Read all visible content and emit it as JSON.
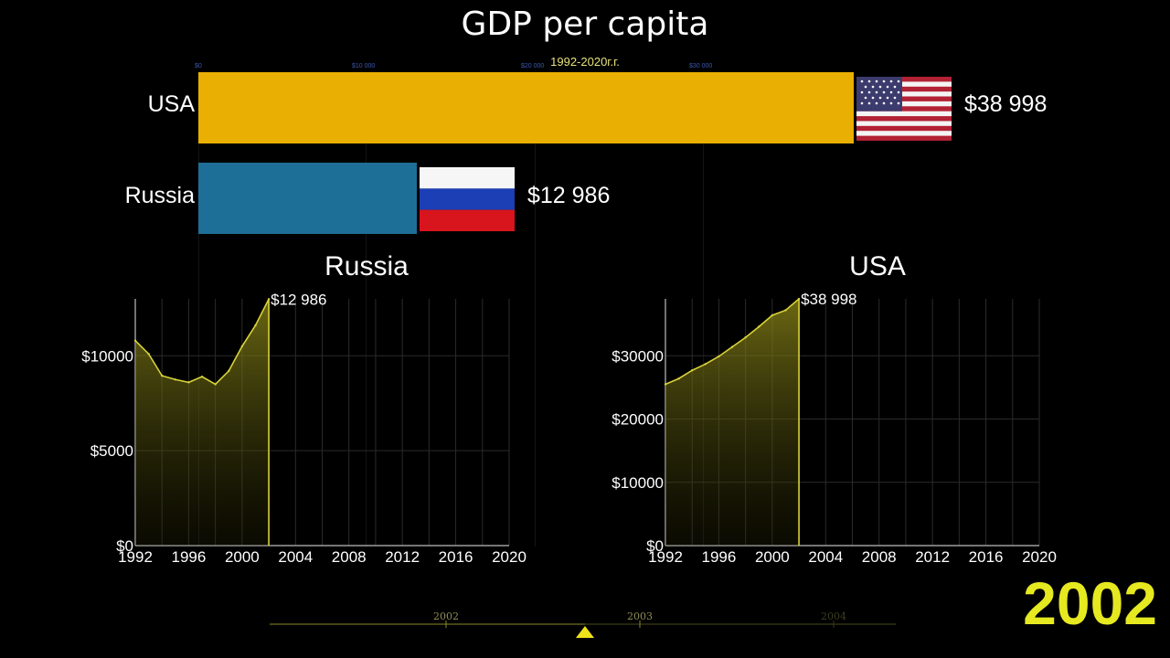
{
  "title": "GDP per capita",
  "subtitle": "1992-2020г.г.",
  "current_year": "2002",
  "bar_axis_ticks": [
    "$0",
    "$10 000",
    "$20 000",
    "$30 000"
  ],
  "bars": [
    {
      "country": "USA",
      "value_label": "$38 998",
      "color": "#e9af03"
    },
    {
      "country": "Russia",
      "value_label": "$12 986",
      "color": "#1e6f97"
    }
  ],
  "timeline": {
    "years": [
      "2002",
      "2003",
      "2004"
    ],
    "marker_color": "#f0e21a"
  },
  "chart_data": [
    {
      "type": "bar",
      "title": "GDP per capita",
      "subtitle": "1992-2020г.г.",
      "categories": [
        "USA",
        "Russia"
      ],
      "values": [
        38998,
        12986
      ],
      "value_labels": [
        "$38 998",
        "$12 986"
      ],
      "xlim": [
        0,
        38998
      ],
      "axis_ticks": [
        "$0",
        "$10 000",
        "$20 000",
        "$30 000"
      ]
    },
    {
      "type": "area",
      "title": "Russia",
      "x": [
        1992,
        1993,
        1994,
        1995,
        1996,
        1997,
        1998,
        1999,
        2000,
        2001,
        2002
      ],
      "y": [
        10800,
        10100,
        8950,
        8750,
        8600,
        8900,
        8500,
        9200,
        10500,
        11600,
        12986
      ],
      "end_label": "$12 986",
      "ylim": [
        0,
        13000
      ],
      "yticks": [
        0,
        5000,
        10000
      ],
      "ytick_labels": [
        "$0",
        "$5000",
        "$10000"
      ],
      "xlim": [
        1992,
        2020
      ],
      "xticks": [
        "1992",
        "1996",
        "2000",
        "2004",
        "2008",
        "2012",
        "2016",
        "2020"
      ],
      "grid": true
    },
    {
      "type": "area",
      "title": "USA",
      "x": [
        1992,
        1993,
        1994,
        1995,
        1996,
        1997,
        1998,
        1999,
        2000,
        2001,
        2002
      ],
      "y": [
        25500,
        26400,
        27700,
        28700,
        29900,
        31400,
        32900,
        34600,
        36400,
        37200,
        38998
      ],
      "end_label": "$38 998",
      "ylim": [
        0,
        39000
      ],
      "yticks": [
        0,
        10000,
        20000,
        30000
      ],
      "ytick_labels": [
        "$0",
        "$10000",
        "$20000",
        "$30000"
      ],
      "xlim": [
        1992,
        2020
      ],
      "xticks": [
        "1992",
        "1996",
        "2000",
        "2004",
        "2008",
        "2012",
        "2016",
        "2020"
      ],
      "grid": true
    }
  ]
}
